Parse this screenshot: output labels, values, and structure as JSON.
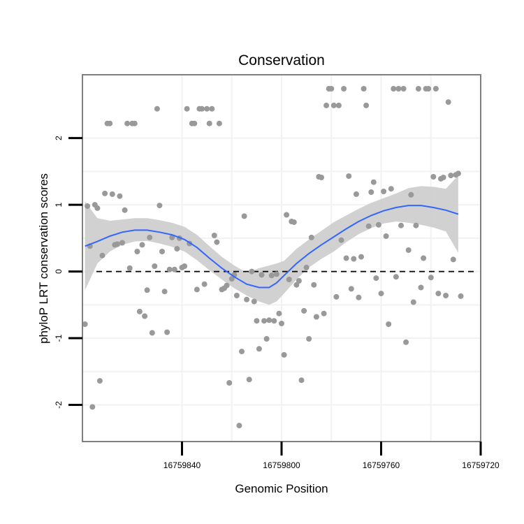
{
  "chart_data": {
    "type": "scatter",
    "title": "Conservation",
    "xlabel": "Genomic Position",
    "ylabel": "phyloP LRT conservation scores",
    "x_reversed": true,
    "xlim": [
      16759720,
      16759880
    ],
    "ylim": [
      -2.55,
      2.95
    ],
    "x_ticks": [
      16759840,
      16759800,
      16759760,
      16759720
    ],
    "y_ticks": [
      -2,
      -1,
      0,
      1,
      2
    ],
    "x_tick_labels": [
      "16759840",
      "16759800",
      "16759760",
      "16759720"
    ],
    "y_tick_labels": [
      "-2",
      "-1",
      "0",
      "1",
      "2"
    ],
    "reference_line": {
      "y": 0,
      "style": "dashed"
    },
    "colors": {
      "points": "#999999",
      "smooth_line": "#3366ff",
      "ribbon": "#cccccc",
      "panel_border": "#7f7f7f",
      "grid": "#f2f2f2"
    },
    "points": [
      {
        "x": 16759879,
        "y": -0.79
      },
      {
        "x": 16759878,
        "y": 0.98
      },
      {
        "x": 16759877,
        "y": 0.38
      },
      {
        "x": 16759876,
        "y": -2.03
      },
      {
        "x": 16759875,
        "y": 1.0
      },
      {
        "x": 16759874,
        "y": 0.95
      },
      {
        "x": 16759873,
        "y": -1.64
      },
      {
        "x": 16759872,
        "y": 0.24
      },
      {
        "x": 16759871,
        "y": 1.17
      },
      {
        "x": 16759870,
        "y": 2.22
      },
      {
        "x": 16759869,
        "y": 2.22
      },
      {
        "x": 16759868,
        "y": 1.16
      },
      {
        "x": 16759867,
        "y": 0.4
      },
      {
        "x": 16759866,
        "y": 0.41
      },
      {
        "x": 16759865,
        "y": 1.13
      },
      {
        "x": 16759864,
        "y": 0.43
      },
      {
        "x": 16759863,
        "y": 0.92
      },
      {
        "x": 16759862,
        "y": 2.22
      },
      {
        "x": 16759861,
        "y": 0.05
      },
      {
        "x": 16759860,
        "y": 2.22
      },
      {
        "x": 16759859,
        "y": 2.22
      },
      {
        "x": 16759858,
        "y": 0.3
      },
      {
        "x": 16759857,
        "y": -0.6
      },
      {
        "x": 16759856,
        "y": 0.4
      },
      {
        "x": 16759855,
        "y": -0.67
      },
      {
        "x": 16759854,
        "y": -0.28
      },
      {
        "x": 16759853,
        "y": 0.51
      },
      {
        "x": 16759852,
        "y": -0.92
      },
      {
        "x": 16759851,
        "y": 0.08
      },
      {
        "x": 16759850,
        "y": 2.44
      },
      {
        "x": 16759849,
        "y": 0.99
      },
      {
        "x": 16759848,
        "y": 0.3
      },
      {
        "x": 16759847,
        "y": -0.3
      },
      {
        "x": 16759846,
        "y": -0.91
      },
      {
        "x": 16759845,
        "y": 0.03
      },
      {
        "x": 16759844,
        "y": 0.51
      },
      {
        "x": 16759843,
        "y": 0.03
      },
      {
        "x": 16759842,
        "y": 0.34
      },
      {
        "x": 16759841,
        "y": 0.5
      },
      {
        "x": 16759840,
        "y": 0.06
      },
      {
        "x": 16759839,
        "y": 0.08
      },
      {
        "x": 16759838,
        "y": 2.44
      },
      {
        "x": 16759837,
        "y": 0.42
      },
      {
        "x": 16759836,
        "y": 2.22
      },
      {
        "x": 16759835,
        "y": 2.22
      },
      {
        "x": 16759834,
        "y": -0.27
      },
      {
        "x": 16759833,
        "y": 2.44
      },
      {
        "x": 16759832,
        "y": 2.44
      },
      {
        "x": 16759831,
        "y": -0.19
      },
      {
        "x": 16759830,
        "y": 2.44
      },
      {
        "x": 16759829,
        "y": 2.22
      },
      {
        "x": 16759828,
        "y": 2.44
      },
      {
        "x": 16759827,
        "y": 0.54
      },
      {
        "x": 16759826,
        "y": 0.44
      },
      {
        "x": 16759825,
        "y": 2.22
      },
      {
        "x": 16759824,
        "y": -0.27
      },
      {
        "x": 16759823,
        "y": -0.25
      },
      {
        "x": 16759822,
        "y": -0.21
      },
      {
        "x": 16759821,
        "y": -1.67
      },
      {
        "x": 16759820,
        "y": -0.11
      },
      {
        "x": 16759819,
        "y": -0.05
      },
      {
        "x": 16759818,
        "y": -0.36
      },
      {
        "x": 16759817,
        "y": -2.31
      },
      {
        "x": 16759816,
        "y": -1.2
      },
      {
        "x": 16759815,
        "y": 0.83
      },
      {
        "x": 16759814,
        "y": -0.42
      },
      {
        "x": 16759813,
        "y": -1.62
      },
      {
        "x": 16759812,
        "y": 0.0
      },
      {
        "x": 16759811,
        "y": -0.45
      },
      {
        "x": 16759810,
        "y": -0.74
      },
      {
        "x": 16759809,
        "y": -1.16
      },
      {
        "x": 16759808,
        "y": -0.05
      },
      {
        "x": 16759807,
        "y": -0.74
      },
      {
        "x": 16759806,
        "y": -1.01
      },
      {
        "x": 16759805,
        "y": -0.73
      },
      {
        "x": 16759804,
        "y": -0.06
      },
      {
        "x": 16759803,
        "y": -0.74
      },
      {
        "x": 16759802,
        "y": -0.04
      },
      {
        "x": 16759801,
        "y": -0.63
      },
      {
        "x": 16759800,
        "y": -0.78
      },
      {
        "x": 16759799,
        "y": -1.25
      },
      {
        "x": 16759798,
        "y": 0.85
      },
      {
        "x": 16759797,
        "y": -0.12
      },
      {
        "x": 16759796,
        "y": 0.75
      },
      {
        "x": 16759795,
        "y": 0.74
      },
      {
        "x": 16759794,
        "y": -0.2
      },
      {
        "x": 16759793,
        "y": -0.14
      },
      {
        "x": 16759792,
        "y": -1.63
      },
      {
        "x": 16759791,
        "y": -0.59
      },
      {
        "x": 16759790,
        "y": 0.06
      },
      {
        "x": 16759789,
        "y": -1.01
      },
      {
        "x": 16759788,
        "y": 0.51
      },
      {
        "x": 16759787,
        "y": -0.2
      },
      {
        "x": 16759786,
        "y": -0.68
      },
      {
        "x": 16759785,
        "y": 1.42
      },
      {
        "x": 16759784,
        "y": 1.41
      },
      {
        "x": 16759783,
        "y": -0.63
      },
      {
        "x": 16759782,
        "y": 2.49
      },
      {
        "x": 16759781,
        "y": 2.74
      },
      {
        "x": 16759780,
        "y": 2.74
      },
      {
        "x": 16759779,
        "y": 2.49
      },
      {
        "x": 16759778,
        "y": -0.38
      },
      {
        "x": 16759777,
        "y": 2.49
      },
      {
        "x": 16759776,
        "y": 0.47
      },
      {
        "x": 16759775,
        "y": 2.74
      },
      {
        "x": 16759774,
        "y": 0.2
      },
      {
        "x": 16759773,
        "y": 1.43
      },
      {
        "x": 16759772,
        "y": -0.26
      },
      {
        "x": 16759771,
        "y": 0.19
      },
      {
        "x": 16759770,
        "y": 1.16
      },
      {
        "x": 16759769,
        "y": -0.39
      },
      {
        "x": 16759768,
        "y": 0.22
      },
      {
        "x": 16759767,
        "y": 2.74
      },
      {
        "x": 16759766,
        "y": 2.49
      },
      {
        "x": 16759765,
        "y": 0.68
      },
      {
        "x": 16759764,
        "y": 1.19
      },
      {
        "x": 16759763,
        "y": 1.34
      },
      {
        "x": 16759762,
        "y": -0.1
      },
      {
        "x": 16759761,
        "y": 0.7
      },
      {
        "x": 16759760,
        "y": -0.33
      },
      {
        "x": 16759759,
        "y": 1.2
      },
      {
        "x": 16759758,
        "y": 0.53
      },
      {
        "x": 16759757,
        "y": -0.79
      },
      {
        "x": 16759756,
        "y": 1.24
      },
      {
        "x": 16759755,
        "y": 2.74
      },
      {
        "x": 16759754,
        "y": -0.08
      },
      {
        "x": 16759753,
        "y": 2.74
      },
      {
        "x": 16759752,
        "y": 0.69
      },
      {
        "x": 16759751,
        "y": 2.74
      },
      {
        "x": 16759750,
        "y": -1.06
      },
      {
        "x": 16759749,
        "y": 0.32
      },
      {
        "x": 16759748,
        "y": 1.15
      },
      {
        "x": 16759747,
        "y": -0.46
      },
      {
        "x": 16759746,
        "y": 0.69
      },
      {
        "x": 16759745,
        "y": 2.74
      },
      {
        "x": 16759744,
        "y": -0.24
      },
      {
        "x": 16759743,
        "y": 0.2
      },
      {
        "x": 16759742,
        "y": 2.74
      },
      {
        "x": 16759741,
        "y": 2.74
      },
      {
        "x": 16759740,
        "y": -0.09
      },
      {
        "x": 16759739,
        "y": 1.42
      },
      {
        "x": 16759738,
        "y": 2.74
      },
      {
        "x": 16759737,
        "y": -0.33
      },
      {
        "x": 16759736,
        "y": 1.39
      },
      {
        "x": 16759735,
        "y": 1.41
      },
      {
        "x": 16759734,
        "y": -0.36
      },
      {
        "x": 16759733,
        "y": 2.54
      },
      {
        "x": 16759732,
        "y": 1.44
      },
      {
        "x": 16759731,
        "y": 0.18
      },
      {
        "x": 16759730,
        "y": 1.45
      },
      {
        "x": 16759729,
        "y": 1.47
      },
      {
        "x": 16759728,
        "y": -0.37
      }
    ],
    "smooth": {
      "x": [
        16759879,
        16759874,
        16759869,
        16759864,
        16759859,
        16759854,
        16759849,
        16759844,
        16759839,
        16759834,
        16759829,
        16759824,
        16759819,
        16759814,
        16759809,
        16759805,
        16759802,
        16759799,
        16759794,
        16759789,
        16759784,
        16759779,
        16759774,
        16759769,
        16759764,
        16759759,
        16759754,
        16759749,
        16759744,
        16759739,
        16759734,
        16759729
      ],
      "y": [
        0.38,
        0.45,
        0.53,
        0.59,
        0.62,
        0.62,
        0.59,
        0.55,
        0.48,
        0.36,
        0.2,
        0.05,
        -0.08,
        -0.19,
        -0.24,
        -0.24,
        -0.17,
        -0.06,
        0.12,
        0.27,
        0.4,
        0.52,
        0.64,
        0.75,
        0.84,
        0.91,
        0.96,
        0.99,
        0.99,
        0.96,
        0.92,
        0.86
      ],
      "lower": [
        -0.28,
        0.12,
        0.3,
        0.4,
        0.45,
        0.46,
        0.42,
        0.37,
        0.3,
        0.17,
        0.02,
        -0.12,
        -0.25,
        -0.36,
        -0.45,
        -0.5,
        -0.45,
        -0.33,
        -0.12,
        0.06,
        0.19,
        0.3,
        0.44,
        0.56,
        0.65,
        0.72,
        0.75,
        0.73,
        0.7,
        0.66,
        0.6,
        0.28
      ],
      "upper": [
        1.05,
        0.8,
        0.76,
        0.78,
        0.8,
        0.8,
        0.77,
        0.73,
        0.67,
        0.55,
        0.38,
        0.22,
        0.09,
        -0.02,
        0.05,
        0.09,
        0.12,
        0.16,
        0.34,
        0.48,
        0.61,
        0.74,
        0.84,
        0.94,
        1.03,
        1.1,
        1.17,
        1.25,
        1.28,
        1.27,
        1.24,
        1.44
      ]
    }
  }
}
